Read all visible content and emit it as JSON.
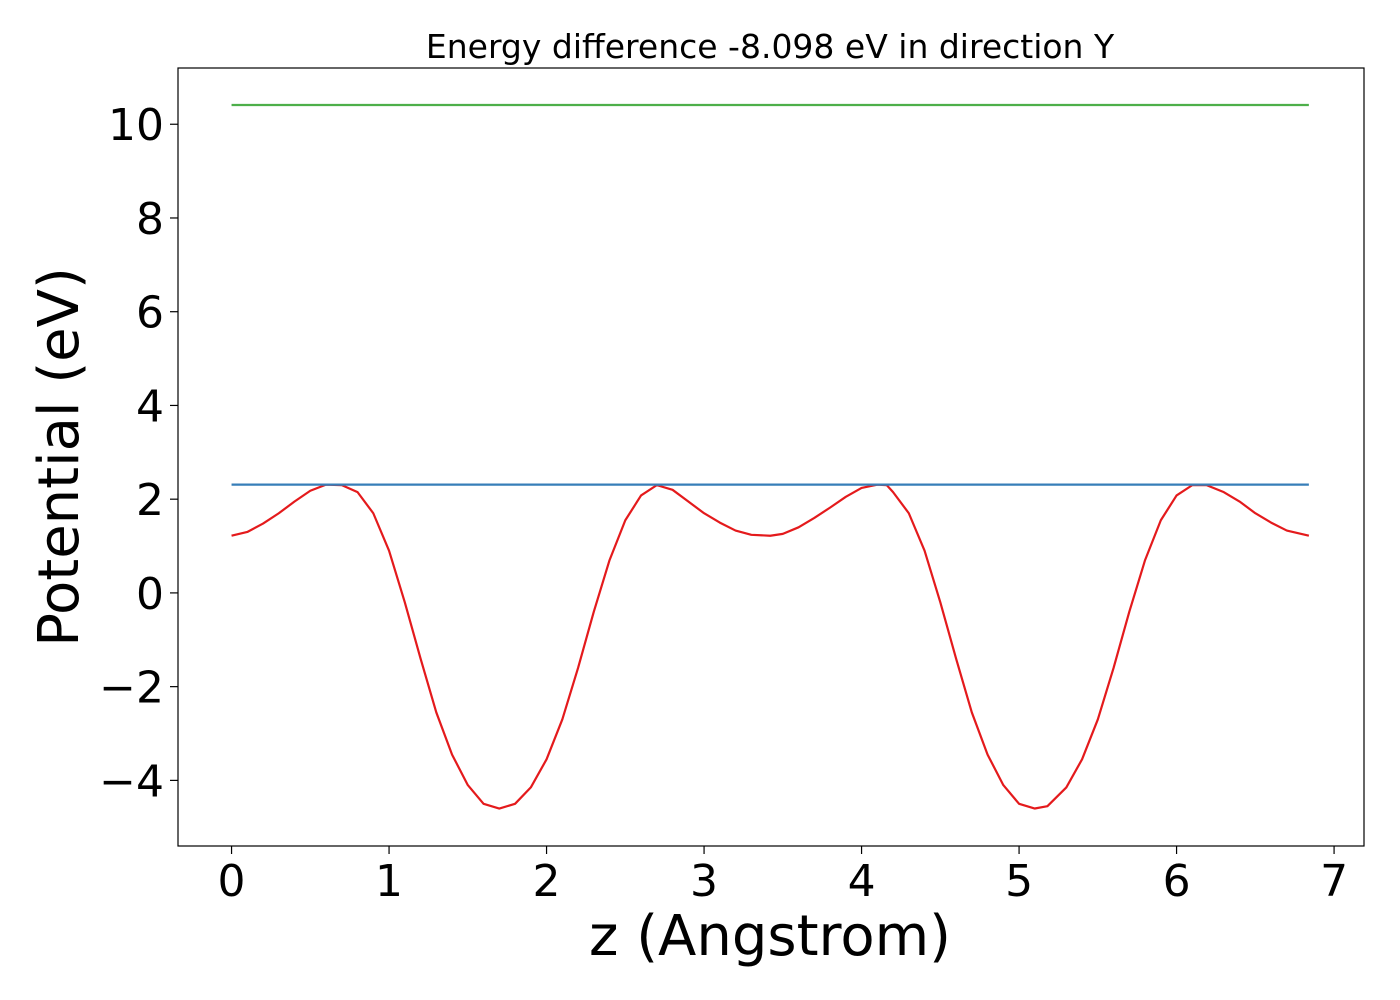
{
  "chart_data": {
    "type": "line",
    "title": "Energy difference -8.098 eV in direction Y",
    "xlabel": "z (Angstrom)",
    "ylabel": "Potential (eV)",
    "xlim": [
      -0.34,
      7.19
    ],
    "ylim": [
      -5.4,
      11.2
    ],
    "xticks": [
      0,
      1,
      2,
      3,
      4,
      5,
      6,
      7
    ],
    "xtick_labels": [
      "0",
      "1",
      "2",
      "3",
      "4",
      "5",
      "6",
      "7"
    ],
    "yticks": [
      -4,
      -2,
      0,
      2,
      4,
      6,
      8,
      10
    ],
    "ytick_labels": [
      "−4",
      "−2",
      "0",
      "2",
      "4",
      "6",
      "8",
      "10"
    ],
    "grid": false,
    "series": [
      {
        "color": "#e41a1c",
        "x": [
          0.0,
          0.1,
          0.2,
          0.3,
          0.4,
          0.5,
          0.6,
          0.7,
          0.8,
          0.9,
          1.0,
          1.1,
          1.2,
          1.3,
          1.4,
          1.5,
          1.6,
          1.7,
          1.8,
          1.9,
          2.0,
          2.1,
          2.2,
          2.3,
          2.4,
          2.5,
          2.6,
          2.7,
          2.8,
          2.9,
          3.0,
          3.1,
          3.2,
          3.3,
          3.42,
          3.5,
          3.6,
          3.7,
          3.8,
          3.9,
          4.0,
          4.1,
          4.16,
          4.2,
          4.3,
          4.4,
          4.5,
          4.6,
          4.7,
          4.8,
          4.9,
          5.0,
          5.1,
          5.18,
          5.3,
          5.4,
          5.5,
          5.6,
          5.7,
          5.8,
          5.9,
          6.0,
          6.1,
          6.19,
          6.3,
          6.4,
          6.5,
          6.6,
          6.7,
          6.84
        ],
        "y": [
          1.22,
          1.3,
          1.48,
          1.7,
          1.95,
          2.18,
          2.31,
          2.3,
          2.15,
          1.7,
          0.9,
          -0.2,
          -1.4,
          -2.55,
          -3.45,
          -4.1,
          -4.5,
          -4.6,
          -4.5,
          -4.15,
          -3.55,
          -2.7,
          -1.6,
          -0.4,
          0.7,
          1.55,
          2.08,
          2.3,
          2.2,
          1.95,
          1.7,
          1.5,
          1.33,
          1.24,
          1.22,
          1.26,
          1.4,
          1.6,
          1.82,
          2.05,
          2.24,
          2.31,
          2.3,
          2.15,
          1.7,
          0.9,
          -0.2,
          -1.4,
          -2.55,
          -3.45,
          -4.1,
          -4.5,
          -4.6,
          -4.55,
          -4.15,
          -3.55,
          -2.7,
          -1.6,
          -0.4,
          0.7,
          1.55,
          2.08,
          2.3,
          2.3,
          2.15,
          1.95,
          1.7,
          1.5,
          1.33,
          1.22
        ]
      },
      {
        "color": "#377eb8",
        "x": [
          0.0,
          6.84
        ],
        "y": [
          2.31,
          2.31
        ]
      },
      {
        "color": "#4daf4a",
        "x": [
          0.0,
          6.84
        ],
        "y": [
          10.41,
          10.41
        ]
      }
    ]
  }
}
